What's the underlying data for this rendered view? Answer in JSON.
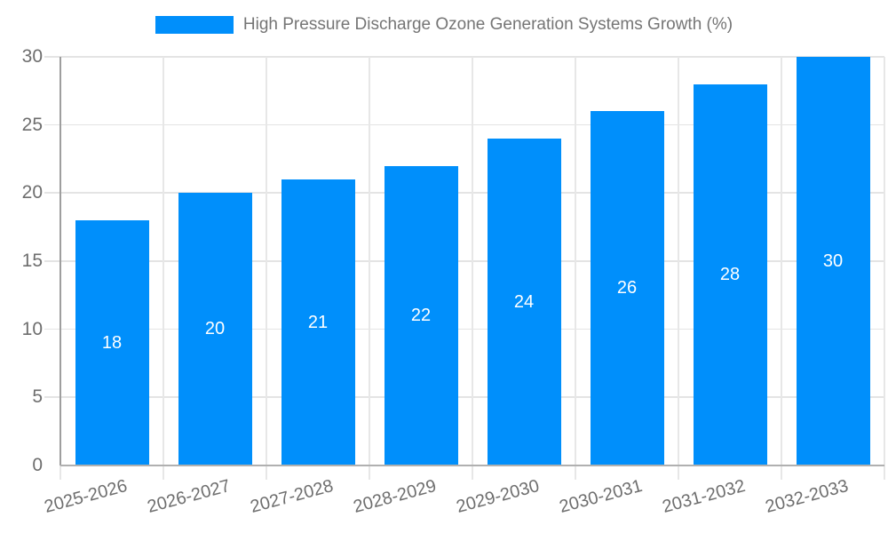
{
  "legend": {
    "label": "High Pressure Discharge Ozone Generation Systems Growth (%)"
  },
  "chart_data": {
    "type": "bar",
    "title": "High Pressure Discharge Ozone Generation Systems Growth (%)",
    "categories": [
      "2025-2026",
      "2026-2027",
      "2027-2028",
      "2028-2029",
      "2029-2030",
      "2030-2031",
      "2031-2032",
      "2032-2033"
    ],
    "values": [
      18,
      20,
      21,
      22,
      24,
      26,
      28,
      30
    ],
    "xlabel": "",
    "ylabel": "",
    "ylim": [
      0,
      30
    ],
    "yticks": [
      0,
      5,
      10,
      15,
      20,
      25,
      30
    ],
    "grid": "horizontal and vertical gridlines on",
    "legend_position": "top-center",
    "data_labels": "values shown in white, centered inside each bar",
    "x_label_rotation_deg": -15
  },
  "colors": {
    "bar": "#008FFB",
    "gridline": "#e6e6e6",
    "axis_line": "#a8a8a8",
    "axis_text": "#6e6e6e",
    "legend_text": "#757575",
    "bar_label_text": "#ffffff",
    "background": "#ffffff"
  }
}
